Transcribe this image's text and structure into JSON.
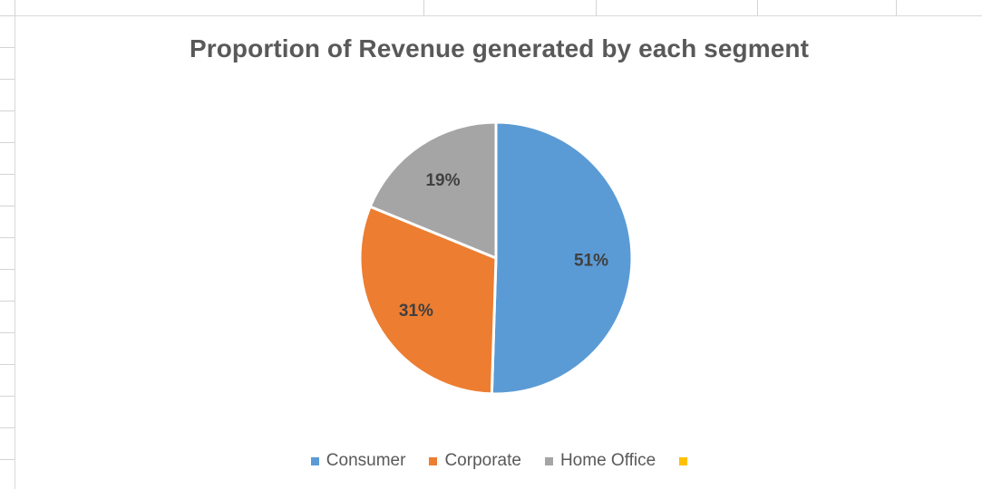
{
  "chart_data": {
    "type": "pie",
    "title": "Proportion of Revenue generated by each segment",
    "categories": [
      "Consumer",
      "Corporate",
      "Home Office",
      ""
    ],
    "values": [
      51,
      31,
      19,
      0
    ],
    "labels": [
      "51%",
      "31%",
      "19%",
      ""
    ],
    "colors": [
      "#5b9bd5",
      "#ed7d31",
      "#a5a5a5",
      "#ffc000"
    ],
    "legend_position": "bottom"
  }
}
